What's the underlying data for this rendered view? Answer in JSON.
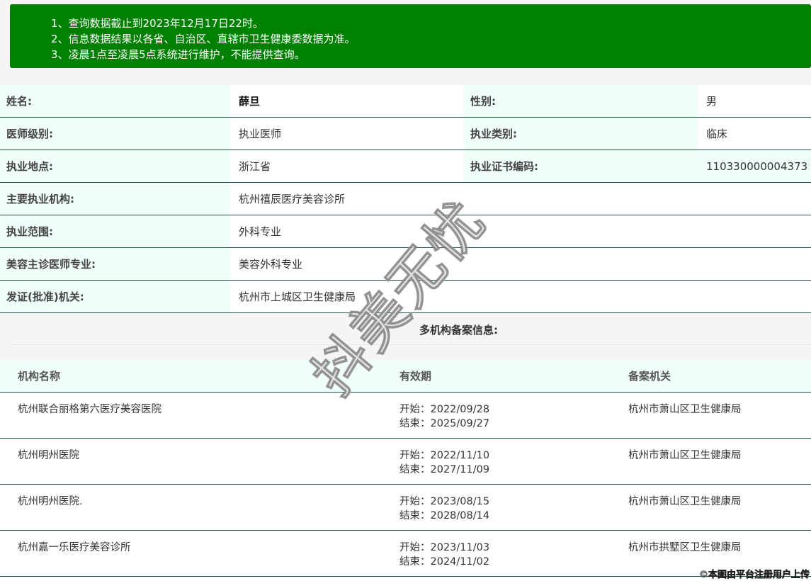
{
  "notice": [
    "1、查询数据截止到2023年12月17日22时。",
    "2、信息数据结果以各省、自治区、直辖市卫生健康委数据为准。",
    "3、凌晨1点至凌晨5点系统进行维护，不能提供查询。"
  ],
  "info": {
    "name_label": "姓名:",
    "name": "薛旦",
    "gender_label": "性别:",
    "gender": "男",
    "level_label": "医师级别:",
    "level": "执业医师",
    "category_label": "执业类别:",
    "category": "临床",
    "location_label": "执业地点:",
    "location": "浙江省",
    "cert_label": "执业证书编码:",
    "cert": "110330000004373",
    "org_label": "主要执业机构:",
    "org": "杭州禧辰医疗美容诊所",
    "scope_label": "执业范围:",
    "scope": "外科专业",
    "cosmetic_label": "美容主诊医师专业:",
    "cosmetic": "美容外科专业",
    "issuer_label": "发证(批准)机关:",
    "issuer": "杭州市上城区卫生健康局"
  },
  "multi": {
    "title": "多机构备案信息:",
    "headers": [
      "机构名称",
      "有效期",
      "备案机关"
    ],
    "rows": [
      {
        "name": "杭州联合丽格第六医疗美容医院",
        "start": "开始：2022/09/28",
        "end": "结束：2025/09/27",
        "authority": "杭州市萧山区卫生健康局"
      },
      {
        "name": "杭州明州医院",
        "start": "开始：2022/11/10",
        "end": "结束：2027/11/09",
        "authority": "杭州市萧山区卫生健康局"
      },
      {
        "name": "杭州明州医院.",
        "start": "开始：2023/08/15",
        "end": "结束：2028/08/14",
        "authority": "杭州市萧山区卫生健康局"
      },
      {
        "name": "杭州嘉一乐医疗美容诊所",
        "start": "开始：2023/11/03",
        "end": "结束：2024/11/02",
        "authority": "杭州市拱墅区卫生健康局"
      }
    ]
  },
  "watermark": "抖美无忧",
  "footer": "©本图由平台注册用户上传",
  "colors": {
    "notice_bg": "#008000",
    "label_bg": "#f0fff7",
    "border": "#1e5a3c"
  }
}
